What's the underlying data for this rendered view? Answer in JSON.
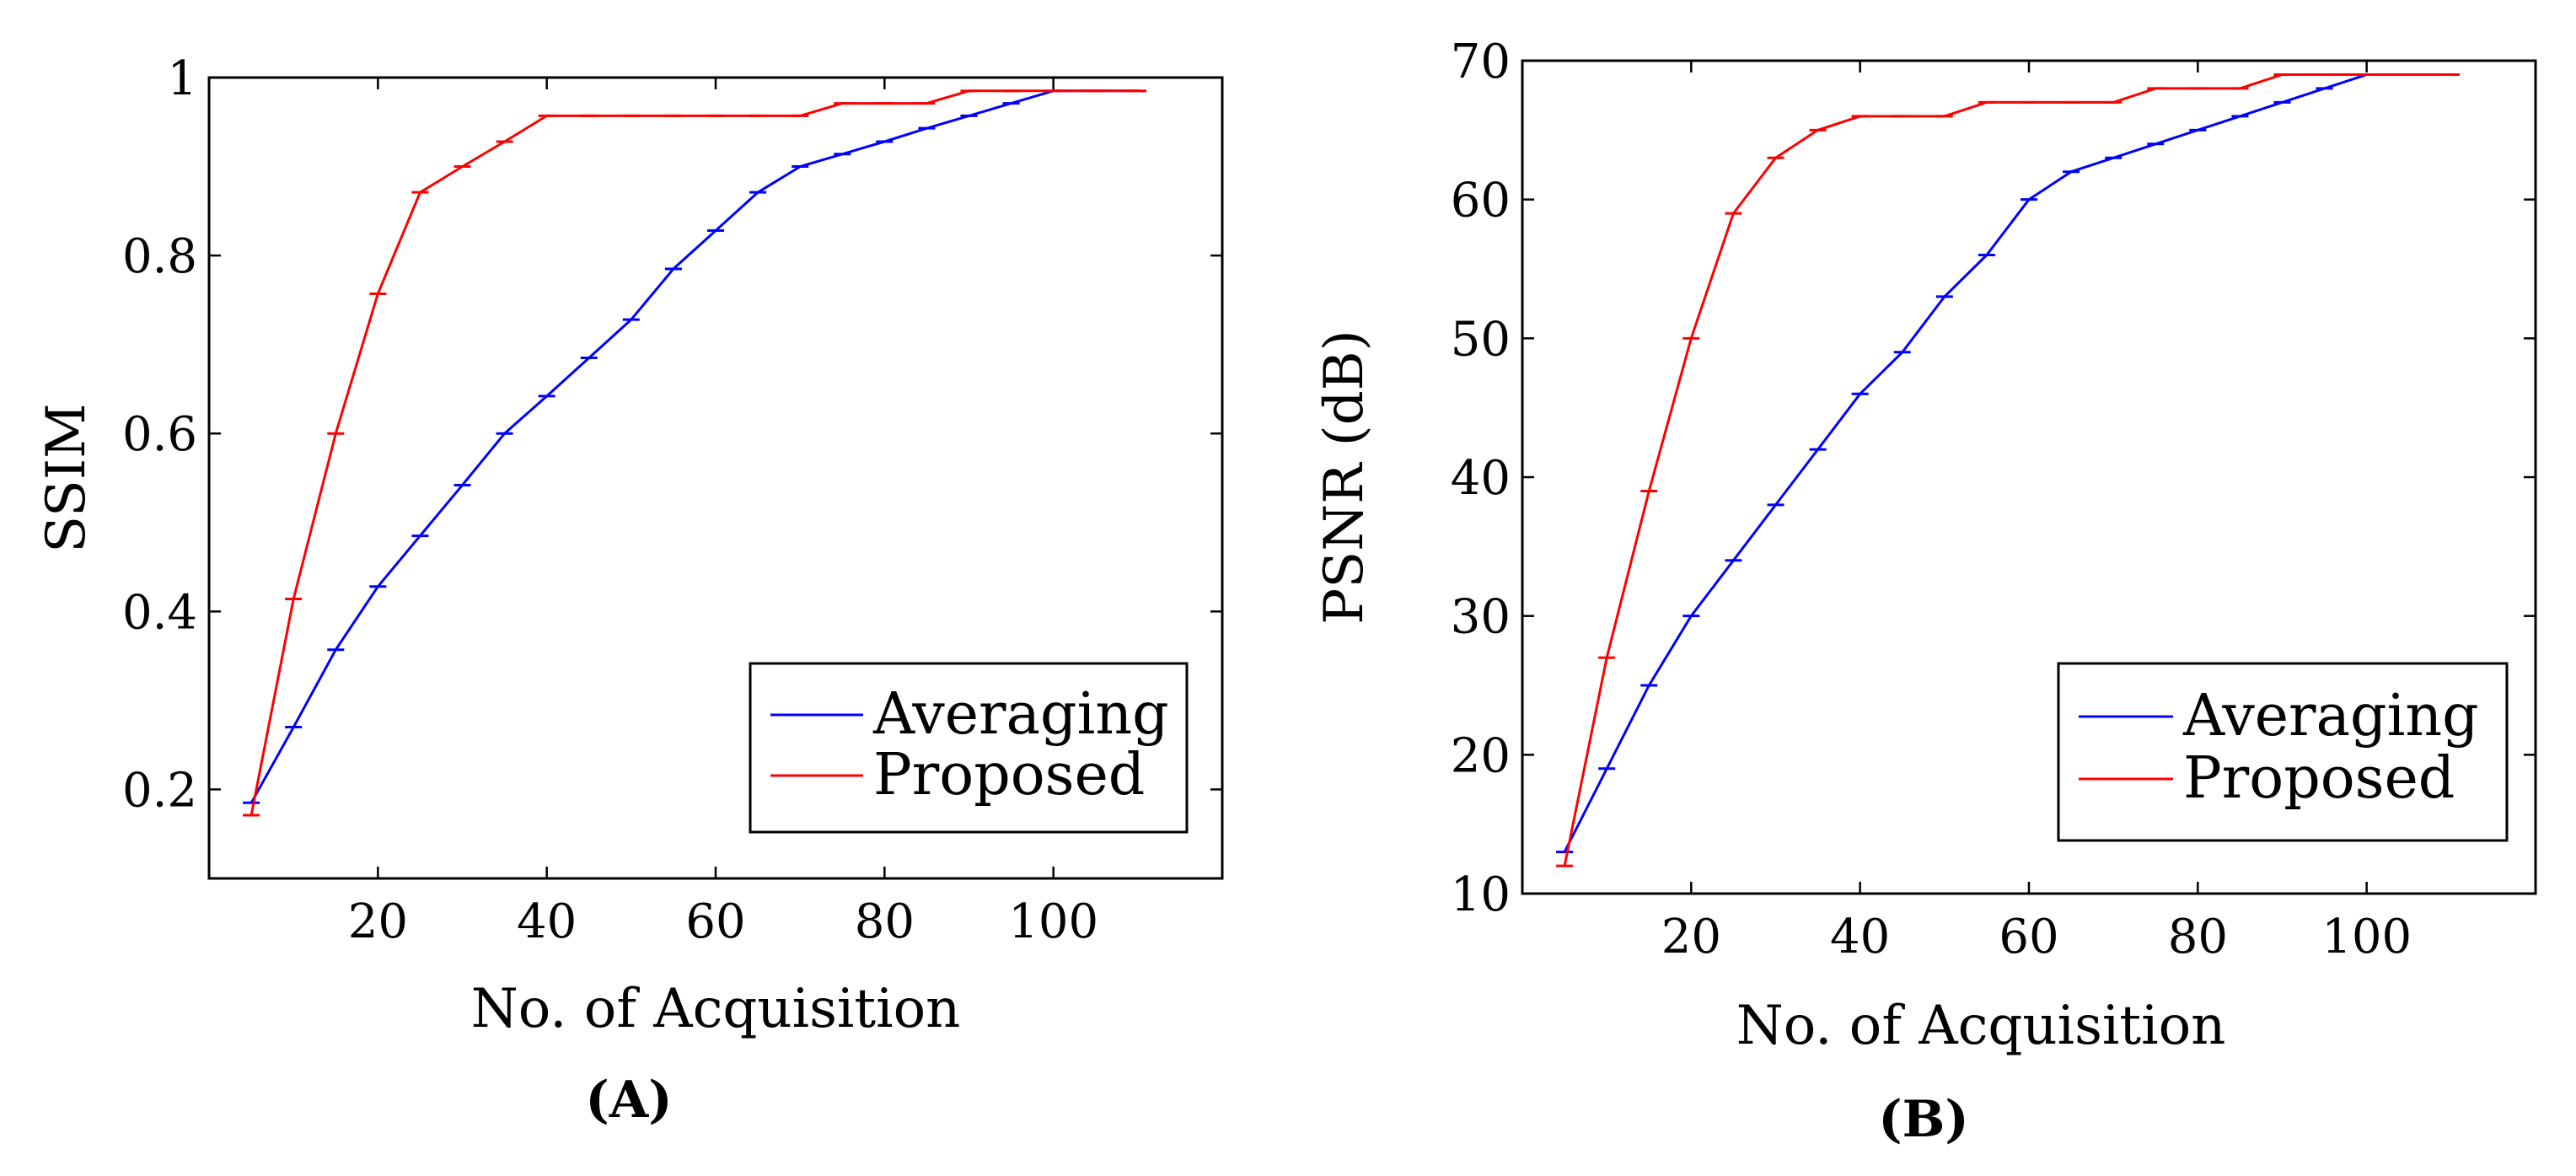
{
  "colors": {
    "averaging": "#0000ff",
    "proposed": "#ff0000",
    "axis": "#000000"
  },
  "chart_data": [
    {
      "type": "line",
      "panel_label": "(A)",
      "title": "",
      "xlabel": "No. of Acquisition",
      "ylabel": "SSIM",
      "xlim": [
        0,
        120
      ],
      "ylim": [
        0.1,
        1
      ],
      "xticks": [
        20,
        40,
        60,
        80,
        100
      ],
      "yticks": [
        0.2,
        0.4,
        0.6,
        0.8,
        1
      ],
      "ytick_labels": [
        "0.2",
        "0.4",
        "0.6",
        "0.8",
        "1"
      ],
      "grid": false,
      "legend_position": "bottom-right",
      "series": [
        {
          "name": "Averaging",
          "color": "#0000ff",
          "x": [
            5,
            10,
            15,
            20,
            25,
            30,
            35,
            40,
            45,
            50,
            55,
            60,
            65,
            70,
            75,
            80,
            85,
            90,
            95,
            100,
            105,
            110
          ],
          "y": [
            0.185,
            0.27,
            0.357,
            0.428,
            0.485,
            0.542,
            0.6,
            0.642,
            0.685,
            0.728,
            0.785,
            0.828,
            0.871,
            0.9,
            0.914,
            0.928,
            0.943,
            0.957,
            0.971,
            0.985,
            0.985,
            0.985
          ]
        },
        {
          "name": "Proposed",
          "color": "#ff0000",
          "x": [
            5,
            10,
            15,
            20,
            25,
            30,
            35,
            40,
            45,
            50,
            55,
            60,
            65,
            70,
            75,
            80,
            85,
            90,
            95,
            100,
            105,
            110
          ],
          "y": [
            0.171,
            0.414,
            0.6,
            0.757,
            0.871,
            0.9,
            0.928,
            0.957,
            0.957,
            0.957,
            0.957,
            0.957,
            0.957,
            0.957,
            0.971,
            0.971,
            0.971,
            0.985,
            0.985,
            0.985,
            0.985,
            0.985
          ]
        }
      ]
    },
    {
      "type": "line",
      "panel_label": "(B)",
      "title": "",
      "xlabel": "No. of Acquisition",
      "ylabel": "PSNR (dB)",
      "xlim": [
        0,
        120
      ],
      "ylim": [
        10,
        70
      ],
      "xticks": [
        20,
        40,
        60,
        80,
        100
      ],
      "yticks": [
        10,
        20,
        30,
        40,
        50,
        60,
        70
      ],
      "ytick_labels": [
        "10",
        "20",
        "30",
        "40",
        "50",
        "60",
        "70"
      ],
      "grid": false,
      "legend_position": "bottom-right",
      "series": [
        {
          "name": "Averaging",
          "color": "#0000ff",
          "x": [
            5,
            10,
            15,
            20,
            25,
            30,
            35,
            40,
            45,
            50,
            55,
            60,
            65,
            70,
            75,
            80,
            85,
            90,
            95,
            100,
            105,
            110
          ],
          "y": [
            13,
            19,
            25,
            30,
            34,
            38,
            42,
            46,
            49,
            53,
            56,
            60,
            62,
            63,
            64,
            65,
            66,
            67,
            68,
            69,
            69,
            69
          ]
        },
        {
          "name": "Proposed",
          "color": "#ff0000",
          "x": [
            5,
            10,
            15,
            20,
            25,
            30,
            35,
            40,
            45,
            50,
            55,
            60,
            65,
            70,
            75,
            80,
            85,
            90,
            95,
            100,
            105,
            110
          ],
          "y": [
            12,
            27,
            39,
            50,
            59,
            63,
            65,
            66,
            66,
            66,
            67,
            67,
            67,
            67,
            68,
            68,
            68,
            69,
            69,
            69,
            69,
            69
          ]
        }
      ]
    }
  ]
}
